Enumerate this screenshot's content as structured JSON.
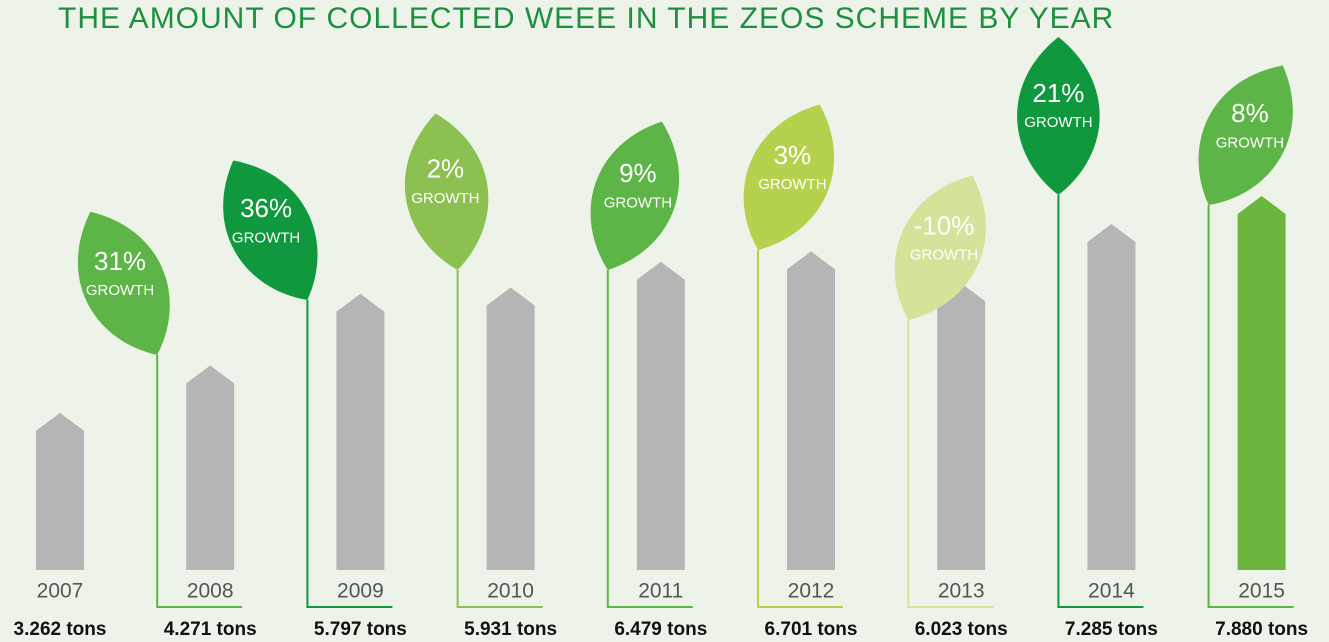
{
  "chart_data": {
    "type": "bar",
    "title": "THE AMOUNT OF COLLECTED WEEE IN THE ZEOS SCHEME BY YEAR",
    "categories": [
      "2007",
      "2008",
      "2009",
      "2010",
      "2011",
      "2012",
      "2013",
      "2014",
      "2015"
    ],
    "values": [
      3262,
      4271,
      5797,
      5931,
      6479,
      6701,
      6023,
      7285,
      7880
    ],
    "value_labels": [
      "3.262 tons",
      "4.271 tons",
      "5.797 tons",
      "5.931 tons",
      "6.479 tons",
      "6.701 tons",
      "6.023 tons",
      "7.285 tons",
      "7.880 tons"
    ],
    "colors": [
      "#b5b5b5",
      "#b5b5b5",
      "#b5b5b5",
      "#b5b5b5",
      "#b5b5b5",
      "#b5b5b5",
      "#b5b5b5",
      "#b5b5b5",
      "#6cb640"
    ],
    "growth": {
      "label": "GROWTH",
      "values": [
        null,
        31,
        36,
        2,
        9,
        3,
        -10,
        21,
        8
      ],
      "value_labels": [
        null,
        "31%",
        "36%",
        "2%",
        "9%",
        "3%",
        "-10%",
        "21%",
        "8%"
      ],
      "colors": [
        null,
        "#5db548",
        "#10983f",
        "#8cc152",
        "#5db548",
        "#b5d24f",
        "#d4e39a",
        "#10983f",
        "#5db548"
      ]
    }
  }
}
